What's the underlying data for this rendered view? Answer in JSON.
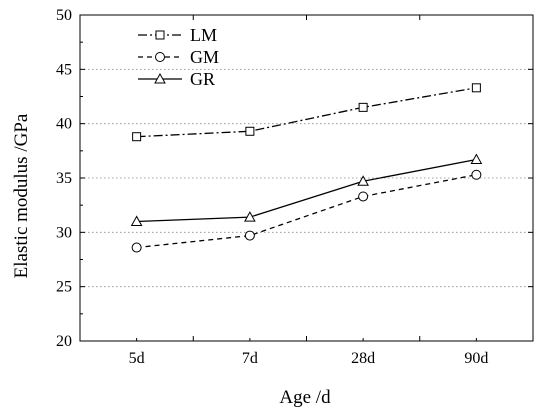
{
  "chart_data": {
    "type": "line",
    "categories": [
      "5d",
      "7d",
      "28d",
      "90d"
    ],
    "series": [
      {
        "name": "LM",
        "values": [
          38.8,
          39.3,
          41.5,
          43.3
        ],
        "line_style": "dash-dot",
        "marker": "square"
      },
      {
        "name": "GM",
        "values": [
          28.6,
          29.7,
          33.3,
          35.3
        ],
        "line_style": "dashed",
        "marker": "circle"
      },
      {
        "name": "GR",
        "values": [
          31.0,
          31.4,
          34.7,
          36.7
        ],
        "line_style": "solid",
        "marker": "triangle"
      }
    ],
    "xlabel": "Age /d",
    "ylabel": "Elastic modulus /GPa",
    "ylim": [
      20,
      50
    ],
    "yticks": [
      20,
      25,
      30,
      35,
      40,
      45,
      50
    ],
    "grid": "horizontal dotted",
    "legend_position": "top-left",
    "colors": {
      "line": "#000000",
      "marker_fill": "#ffffff",
      "grid": "#888888"
    }
  }
}
